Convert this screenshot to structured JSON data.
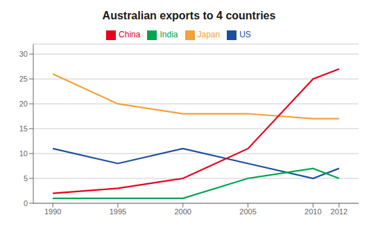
{
  "chart_data": {
    "type": "line",
    "title": "Australian exports to 4 countries",
    "x": [
      1990,
      1995,
      2000,
      2005,
      2010,
      2012
    ],
    "series": [
      {
        "name": "Japan",
        "color": "#F5A03A",
        "values": [
          26,
          20,
          18,
          18,
          17,
          17
        ]
      },
      {
        "name": "US",
        "color": "#1B4F9B",
        "values": [
          11,
          8,
          11,
          8,
          5,
          7
        ]
      },
      {
        "name": "China",
        "color": "#E8001C",
        "values": [
          2,
          3,
          5,
          11,
          25,
          27
        ]
      },
      {
        "name": "India",
        "color": "#00A550",
        "values": [
          1,
          1,
          1,
          5,
          7,
          5
        ]
      }
    ],
    "xlim": [
      1988.5,
      2013.5
    ],
    "xticks": [
      1990,
      1995,
      2000,
      2005,
      2010,
      2012
    ],
    "ylim": [
      0,
      32
    ],
    "yticks": [
      0,
      5,
      10,
      15,
      20,
      25,
      30
    ],
    "grid": true,
    "legend": "top"
  }
}
